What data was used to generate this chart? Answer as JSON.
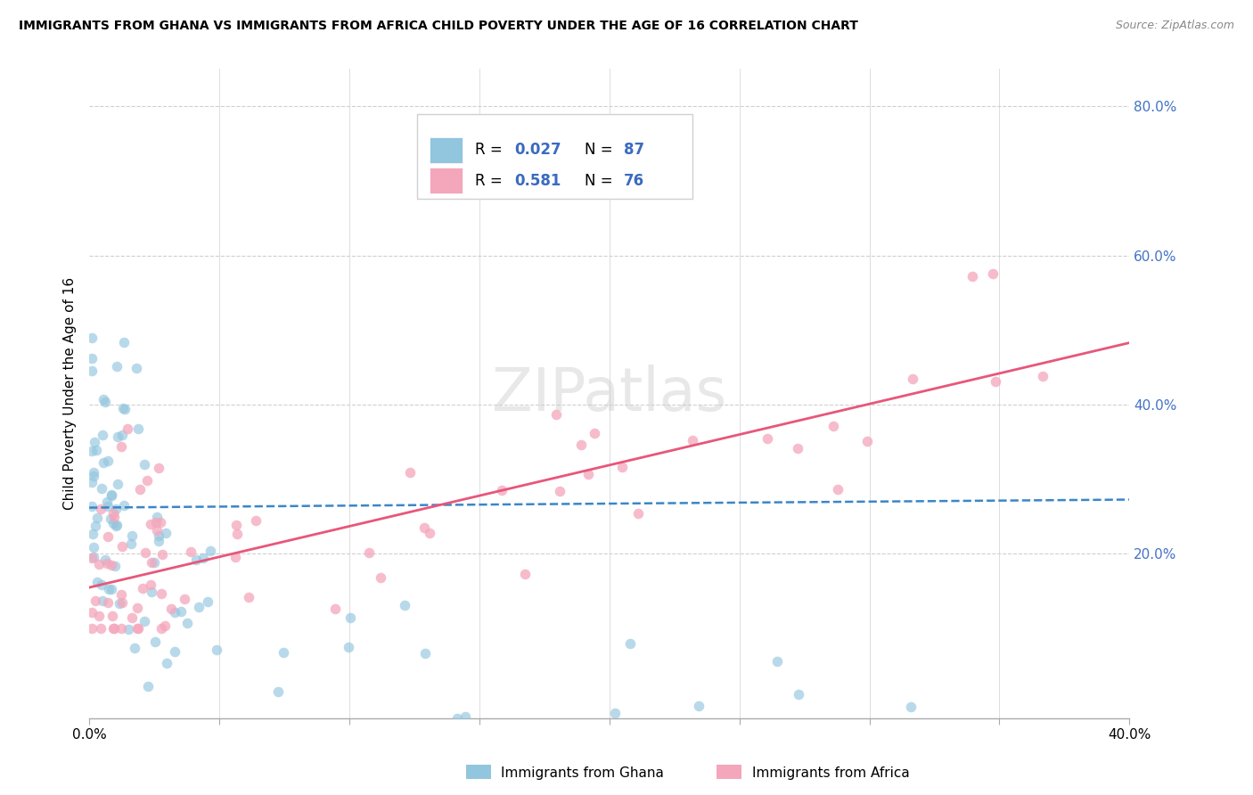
{
  "title": "IMMIGRANTS FROM GHANA VS IMMIGRANTS FROM AFRICA CHILD POVERTY UNDER THE AGE OF 16 CORRELATION CHART",
  "source": "Source: ZipAtlas.com",
  "ylabel": "Child Poverty Under the Age of 16",
  "xlim": [
    0.0,
    0.4
  ],
  "ylim": [
    -0.02,
    0.85
  ],
  "xtick_positions": [
    0.0,
    0.05,
    0.1,
    0.15,
    0.2,
    0.25,
    0.3,
    0.35,
    0.4
  ],
  "xticklabels": [
    "0.0%",
    "",
    "",
    "",
    "",
    "",
    "",
    "",
    "40.0%"
  ],
  "yticks_right": [
    0.2,
    0.4,
    0.6,
    0.8
  ],
  "yticklabels_right": [
    "20.0%",
    "40.0%",
    "60.0%",
    "80.0%"
  ],
  "ghana_color": "#92c5de",
  "africa_color": "#f4a6bb",
  "ghana_R": 0.027,
  "ghana_N": 87,
  "africa_R": 0.581,
  "africa_N": 76,
  "ghana_trend_color": "#3a86c8",
  "africa_trend_color": "#e8567a",
  "ghana_trend_intercept": 0.262,
  "ghana_trend_slope": 0.027,
  "africa_trend_intercept": 0.155,
  "africa_trend_slope": 0.82,
  "watermark": "ZIPatlas",
  "legend_color": "#3a6bbf",
  "grid_color": "#d0d0d0",
  "right_tick_color": "#4472c4"
}
